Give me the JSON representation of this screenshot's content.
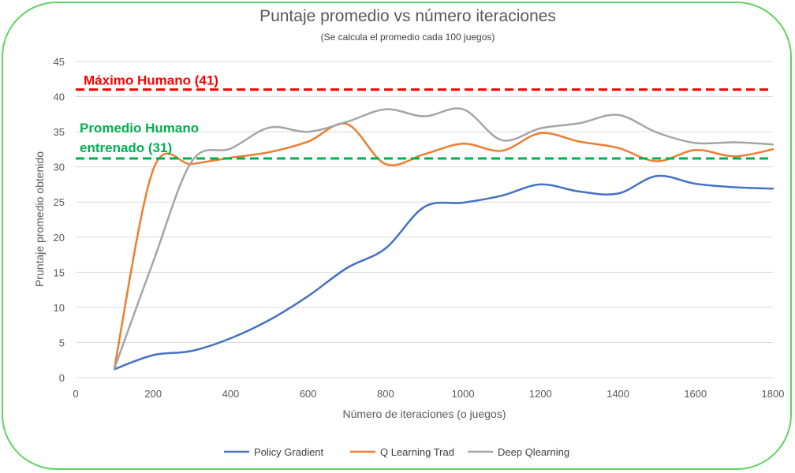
{
  "chart_data": {
    "type": "line",
    "title": "Puntaje promedio vs número iteraciones",
    "subtitle": "(Se calcula el promedio cada 100 juegos)",
    "xlabel": "Número de iteraciones (o juegos)",
    "ylabel": "Pruntaje promedio obtenido",
    "xlim": [
      0,
      1800
    ],
    "ylim": [
      0,
      45
    ],
    "xticks": [
      0,
      200,
      400,
      600,
      800,
      1000,
      1200,
      1400,
      1600,
      1800
    ],
    "yticks": [
      0,
      5,
      10,
      15,
      20,
      25,
      30,
      35,
      40,
      45
    ],
    "grid": "horizontal",
    "legend_position": "bottom",
    "x": [
      100,
      200,
      300,
      400,
      500,
      600,
      700,
      800,
      900,
      1000,
      1100,
      1200,
      1300,
      1400,
      1500,
      1600,
      1700,
      1800
    ],
    "series": [
      {
        "name": "Policy Gradient",
        "color": "#4472c4",
        "values": [
          1.2,
          3.2,
          3.8,
          5.6,
          8.2,
          11.6,
          15.6,
          18.4,
          24.3,
          24.9,
          25.9,
          27.5,
          26.5,
          26.2,
          28.7,
          27.6,
          27.1,
          26.9
        ]
      },
      {
        "name": "Q Learning Trad",
        "color": "#ed7d31",
        "values": [
          1.4,
          29.6,
          30.4,
          31.3,
          32.1,
          33.6,
          36.1,
          30.4,
          31.8,
          33.3,
          32.3,
          34.8,
          33.6,
          32.7,
          30.8,
          32.4,
          31.5,
          32.5
        ]
      },
      {
        "name": "Deep Qlearning",
        "color": "#a5a5a5",
        "values": [
          1.3,
          16.5,
          30.8,
          32.6,
          35.6,
          35.0,
          36.4,
          38.2,
          37.2,
          38.2,
          33.8,
          35.5,
          36.2,
          37.4,
          34.9,
          33.4,
          33.5,
          33.2
        ]
      }
    ],
    "reference_lines": [
      {
        "label": "Máximo Humano (41)",
        "value": 41,
        "color": "#ff0000"
      },
      {
        "label_lines": [
          "Promedio Humano",
          "entrenado (31)"
        ],
        "value": 31.2,
        "color": "#00b050"
      }
    ]
  }
}
